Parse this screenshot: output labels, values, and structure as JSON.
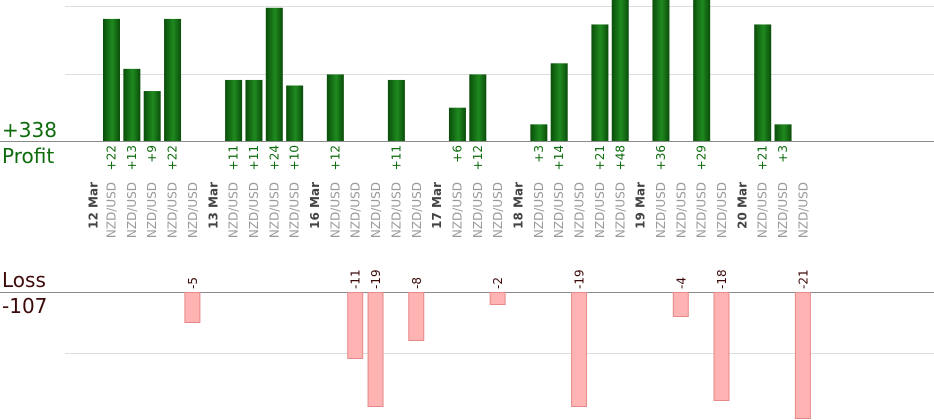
{
  "summary": {
    "profit_total": "+338",
    "profit_label": "Profit",
    "loss_label": "Loss",
    "loss_total": "-107"
  },
  "colors": {
    "profit_text": "#0e6b0e",
    "loss_text": "#3d0a0a",
    "profit_bar_dark": "#0a4d0a",
    "profit_bar_light": "#1f8a1f",
    "loss_bar": "#ffb3b3",
    "loss_bar_border": "#e58a8a",
    "date_text": "#444444",
    "pair_text": "#9a9a9a"
  },
  "chart_data": {
    "type": "bar",
    "title": "",
    "profit_ymax": 24,
    "loss_ymax": 19,
    "slots": [
      {
        "pair": "NZD/USD",
        "profit": 22
      },
      {
        "pair": "NZD/USD",
        "profit": 13
      },
      {
        "pair": "NZD/USD",
        "profit": 9
      },
      {
        "pair": "NZD/USD",
        "profit": 22
      },
      {
        "pair": "NZD/USD",
        "loss": -5
      },
      {
        "date": "13 Mar"
      },
      {
        "pair": "NZD/USD",
        "profit": 11
      },
      {
        "pair": "NZD/USD",
        "profit": 11
      },
      {
        "pair": "NZD/USD",
        "profit": 24
      },
      {
        "pair": "NZD/USD",
        "profit": 10
      },
      {
        "date": "16 Mar"
      },
      {
        "pair": "NZD/USD",
        "profit": 12
      },
      {
        "pair": "NZD/USD",
        "loss": -11
      },
      {
        "pair": "NZD/USD",
        "loss": -19
      },
      {
        "pair": "NZD/USD",
        "profit": 11
      },
      {
        "pair": "NZD/USD",
        "loss": -8
      },
      {
        "date": "17 Mar"
      },
      {
        "pair": "NZD/USD",
        "profit": 6
      },
      {
        "pair": "NZD/USD",
        "profit": 12
      },
      {
        "pair": "NZD/USD",
        "loss": -2
      },
      {
        "date": "18 Mar"
      },
      {
        "pair": "NZD/USD",
        "profit": 3
      },
      {
        "pair": "NZD/USD",
        "profit": 14
      },
      {
        "pair": "NZD/USD",
        "loss": -19
      },
      {
        "pair": "NZD/USD",
        "profit": 21
      },
      {
        "pair": "NZD/USD",
        "profit": 48
      },
      {
        "date": "19 Mar"
      },
      {
        "pair": "NZD/USD",
        "profit": 36
      },
      {
        "pair": "NZD/USD",
        "loss": -4
      },
      {
        "pair": "NZD/USD",
        "profit": 29
      },
      {
        "pair": "NZD/USD",
        "loss": -18
      },
      {
        "date": "20 Mar"
      },
      {
        "pair": "NZD/USD",
        "profit": 21
      },
      {
        "pair": "NZD/USD",
        "profit": 3
      },
      {
        "pair": "NZD/USD",
        "loss": -21
      }
    ],
    "first_date": "12 Mar"
  }
}
